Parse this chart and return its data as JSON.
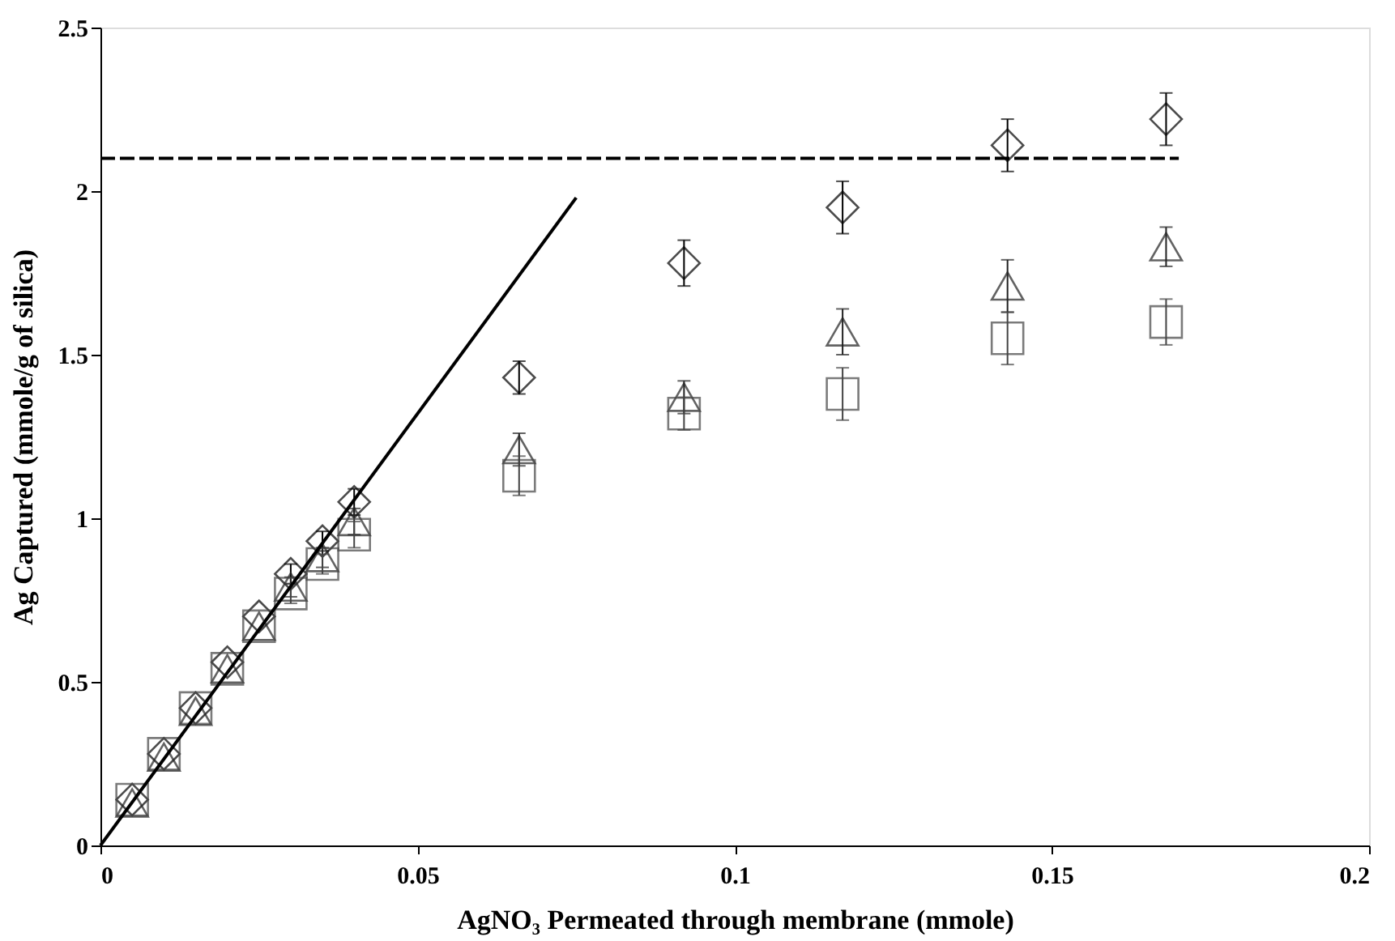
{
  "chart_data": {
    "type": "scatter",
    "xlabel": "AgNO₃ Permeated through membrane (mmole)",
    "ylabel": "Ag Captured (mmole/g of silica)",
    "x": [
      0.005,
      0.01,
      0.015,
      0.02,
      0.025,
      0.03,
      0.035,
      0.04,
      0.066,
      0.092,
      0.117,
      0.143,
      0.168
    ],
    "xlim": [
      0,
      0.2
    ],
    "xticks": [
      0,
      0.05,
      0.1,
      0.15,
      0.2
    ],
    "ylim": [
      0,
      2.5
    ],
    "yticks": [
      0,
      0.5,
      1,
      1.5,
      2,
      2.5
    ],
    "grid": false,
    "series": [
      {
        "color": "#000000",
        "marker": "diamond",
        "values": [
          0.14,
          0.28,
          0.42,
          0.56,
          0.7,
          0.83,
          0.93,
          1.05,
          1.43,
          1.78,
          1.95,
          2.14,
          2.22
        ],
        "errors": [
          null,
          null,
          null,
          null,
          null,
          0.03,
          0.03,
          0.04,
          0.05,
          0.07,
          0.08,
          0.08,
          0.08
        ]
      },
      {
        "color": "#222222",
        "marker": "triangle",
        "values": [
          0.13,
          0.27,
          0.41,
          0.54,
          0.67,
          0.79,
          0.88,
          0.99,
          1.21,
          1.37,
          1.57,
          1.71,
          1.83
        ],
        "errors": [
          null,
          null,
          null,
          null,
          null,
          0.03,
          0.03,
          0.04,
          0.05,
          0.05,
          0.07,
          0.08,
          0.06
        ]
      },
      {
        "color": "#444444",
        "marker": "square",
        "values": [
          0.14,
          0.28,
          0.42,
          0.54,
          0.67,
          0.77,
          0.86,
          0.95,
          1.13,
          1.32,
          1.38,
          1.55,
          1.6
        ],
        "errors": [
          null,
          null,
          null,
          null,
          null,
          0.03,
          0.03,
          0.04,
          0.06,
          0.05,
          0.08,
          0.08,
          0.07
        ]
      },
      {
        "type": "line",
        "color": "#000000",
        "line_style": "solid",
        "marker": "none",
        "x": [
          0,
          0.075
        ],
        "values": [
          0,
          1.98
        ]
      },
      {
        "type": "line",
        "color": "#000000",
        "line_style": "dashed",
        "marker": "none",
        "x": [
          0,
          0.17
        ],
        "values": [
          2.1,
          2.1
        ]
      }
    ]
  }
}
